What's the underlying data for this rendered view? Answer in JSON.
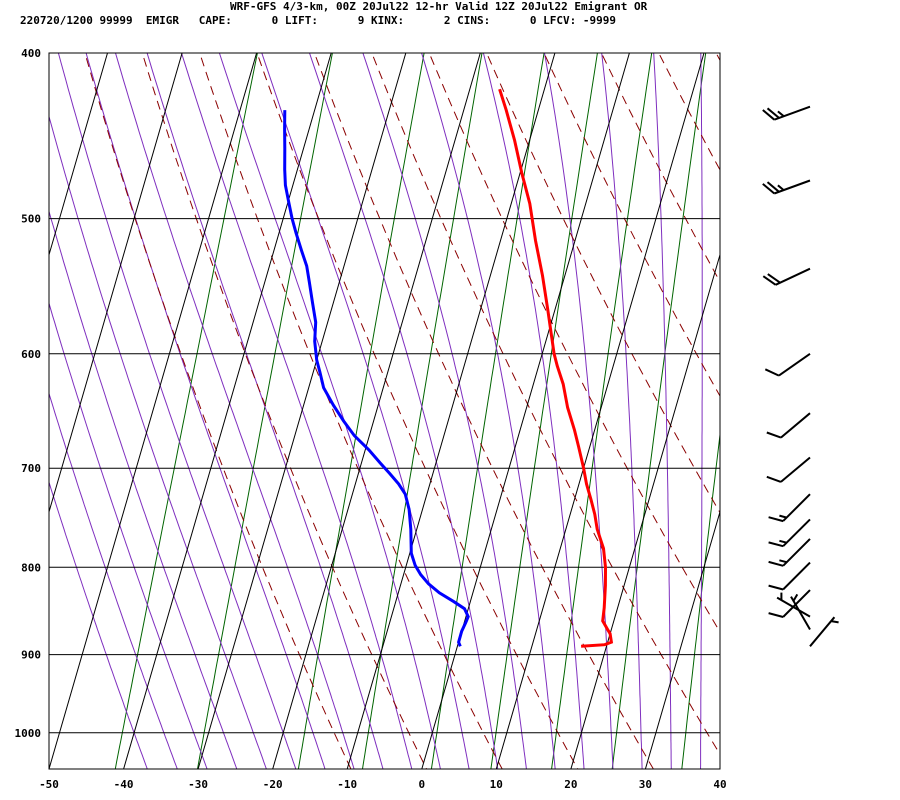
{
  "header": {
    "line1": "WRF-GFS 4/3-km, 00Z 20Jul22 12-hr Valid 12Z 20Jul22 Emigrant OR",
    "line2": "220720/1200 99999  EMIGR   CAPE:      0 LIFT:      9 KINX:      2 CINS:      0 LFCV: -9999"
  },
  "chart_data": {
    "type": "line",
    "title": "WRF-GFS 4/3-km, 00Z 20Jul22 12-hr Valid 12Z 20Jul22 Emigrant OR",
    "xlabel": "",
    "ylabel": "",
    "xlim": [
      -50,
      40
    ],
    "ylim": [
      1050,
      400
    ],
    "y_scale": "log-pressure",
    "x_ticks": [
      -50,
      -40,
      -30,
      -20,
      -10,
      0,
      10,
      20,
      30,
      40
    ],
    "y_ticks": [
      400,
      500,
      600,
      700,
      800,
      900,
      1000
    ],
    "grid": true,
    "series": [
      {
        "color": "#ff0000",
        "points": [
          [
            16.6,
            890
          ],
          [
            19.7,
            888
          ],
          [
            20.5,
            885
          ],
          [
            20.0,
            875
          ],
          [
            19.5,
            870
          ],
          [
            18.5,
            860
          ],
          [
            18.2,
            845
          ],
          [
            17.5,
            820
          ],
          [
            16.8,
            800
          ],
          [
            15.8,
            780
          ],
          [
            14.2,
            760
          ],
          [
            13.3,
            745
          ],
          [
            12.2,
            730
          ],
          [
            11.0,
            715
          ],
          [
            10.0,
            700
          ],
          [
            8.5,
            680
          ],
          [
            7.3,
            665
          ],
          [
            5.5,
            645
          ],
          [
            4.0,
            625
          ],
          [
            2.5,
            610
          ],
          [
            1.6,
            600
          ],
          [
            0.5,
            585
          ],
          [
            -1.0,
            565
          ],
          [
            -3.0,
            540
          ],
          [
            -5.3,
            515
          ],
          [
            -7.5,
            490
          ],
          [
            -9.8,
            470
          ],
          [
            -12.0,
            450
          ],
          [
            -14.3,
            432
          ],
          [
            -16.0,
            420
          ]
        ]
      },
      {
        "color": "#0000ff",
        "points": [
          [
            0.4,
            890
          ],
          [
            0.0,
            885
          ],
          [
            0.0,
            872
          ],
          [
            0.2,
            862
          ],
          [
            0.3,
            855
          ],
          [
            -0.5,
            846
          ],
          [
            -2.2,
            838
          ],
          [
            -4.5,
            828
          ],
          [
            -6.3,
            818
          ],
          [
            -7.7,
            808
          ],
          [
            -8.8,
            798
          ],
          [
            -9.8,
            785
          ],
          [
            -10.2,
            775
          ],
          [
            -10.8,
            760
          ],
          [
            -11.8,
            740
          ],
          [
            -12.9,
            725
          ],
          [
            -14.2,
            715
          ],
          [
            -15.8,
            705
          ],
          [
            -17.5,
            695
          ],
          [
            -19.5,
            683
          ],
          [
            -22.0,
            670
          ],
          [
            -24.0,
            657
          ],
          [
            -26.0,
            643
          ],
          [
            -28.0,
            628
          ],
          [
            -29.1,
            615
          ],
          [
            -30.0,
            605
          ],
          [
            -31.0,
            590
          ],
          [
            -31.6,
            575
          ],
          [
            -32.8,
            560
          ],
          [
            -34.0,
            545
          ],
          [
            -35.0,
            533
          ],
          [
            -36.3,
            522
          ],
          [
            -37.7,
            510
          ],
          [
            -38.8,
            500
          ],
          [
            -40.0,
            488
          ],
          [
            -41.0,
            478
          ],
          [
            -41.7,
            468
          ],
          [
            -42.5,
            455
          ],
          [
            -43.3,
            443
          ],
          [
            -44.0,
            432
          ]
        ]
      }
    ],
    "isotherm_color": "#000000",
    "dry_adiabat_color": "#8b0000",
    "moist_adiabat_color": "#7f2fbf",
    "mixing_ratio_color": "#006400"
  },
  "wind_barbs": [
    {
      "p": 430,
      "dir": 250,
      "kt": 25
    },
    {
      "p": 475,
      "dir": 250,
      "kt": 25
    },
    {
      "p": 535,
      "dir": 245,
      "kt": 20
    },
    {
      "p": 600,
      "dir": 235,
      "kt": 10
    },
    {
      "p": 650,
      "dir": 230,
      "kt": 10
    },
    {
      "p": 690,
      "dir": 230,
      "kt": 10
    },
    {
      "p": 725,
      "dir": 225,
      "kt": 15
    },
    {
      "p": 750,
      "dir": 225,
      "kt": 15
    },
    {
      "p": 770,
      "dir": 225,
      "kt": 15
    },
    {
      "p": 795,
      "dir": 225,
      "kt": 10
    },
    {
      "p": 825,
      "dir": 225,
      "kt": 10
    },
    {
      "p": 855,
      "dir": 300,
      "kt": 5
    },
    {
      "p": 870,
      "dir": 330,
      "kt": 5
    },
    {
      "p": 890,
      "dir": 40,
      "kt": 5
    }
  ]
}
